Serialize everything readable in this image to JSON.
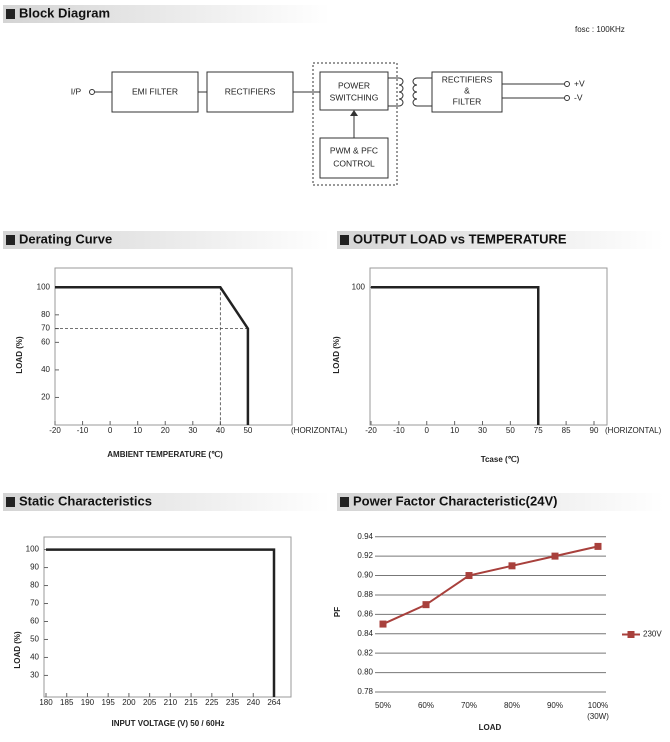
{
  "block_diagram": {
    "title": "Block Diagram",
    "note": "fosc : 100KHz",
    "input": "I/P",
    "nodes": [
      {
        "lines": [
          "EMI FILTER"
        ]
      },
      {
        "lines": [
          "RECTIFIERS"
        ]
      },
      {
        "lines": [
          "POWER",
          "SWITCHING"
        ]
      },
      {
        "lines": [
          "RECTIFIERS",
          "&",
          "FILTER"
        ]
      },
      {
        "lines": [
          "PWM & PFC",
          "CONTROL"
        ]
      }
    ],
    "outputs": [
      "+V",
      "-V"
    ]
  },
  "chart_data": [
    {
      "type": "line",
      "title": "Derating Curve",
      "x_label": "AMBIENT TEMPERATURE (℃)",
      "x_note": "(HORIZONTAL)",
      "y_label": "LOAD (%)",
      "xlim": [
        -20,
        66
      ],
      "xticks": [
        -20,
        -10,
        0,
        10,
        20,
        30,
        40,
        50
      ],
      "ylim": [
        0,
        114
      ],
      "yticks": [
        20,
        40,
        60,
        70,
        80,
        100
      ],
      "x": [
        -20,
        40,
        50,
        50
      ],
      "values": [
        100,
        100,
        70,
        0
      ],
      "color": "#222222",
      "guides": {
        "x": 40,
        "y": 70
      }
    },
    {
      "type": "line",
      "title": "OUTPUT LOAD vs TEMPERATURE",
      "x_label": "Tcase (℃)",
      "x_note": "(HORIZONTAL)",
      "y_label": "LOAD (%)",
      "categories": [
        "-20",
        "-10",
        "0",
        "10",
        "30",
        "50",
        "75",
        "85",
        "90"
      ],
      "ylim": [
        0,
        114
      ],
      "yticks": [
        100
      ],
      "x": [
        "-20",
        "75",
        "75"
      ],
      "values": [
        100,
        100,
        0
      ],
      "color": "#222222"
    },
    {
      "type": "line",
      "title": "Static Characteristics",
      "x_label": "INPUT VOLTAGE (V) 50 / 60Hz",
      "y_label": "LOAD (%)",
      "categories": [
        "180",
        "185",
        "190",
        "195",
        "200",
        "205",
        "210",
        "215",
        "225",
        "235",
        "240",
        "264"
      ],
      "ylim": [
        18,
        107
      ],
      "yticks": [
        30,
        40,
        50,
        60,
        70,
        80,
        90,
        100
      ],
      "x": [
        "180",
        "264",
        "264"
      ],
      "values": [
        100,
        100,
        18
      ],
      "color": "#222222"
    },
    {
      "type": "line",
      "title": "Power Factor Characteristic(24V)",
      "x_label": "LOAD",
      "x_note": "(30W)",
      "y_label": "PF",
      "categories": [
        "50%",
        "60%",
        "70%",
        "80%",
        "90%",
        "100%"
      ],
      "ylim": [
        0.78,
        0.95
      ],
      "yticks": [
        0.78,
        {
          "value": 0.8,
          "label": "0.80"
        },
        0.82,
        0.84,
        0.86,
        0.88,
        {
          "value": 0.9,
          "label": "0.90"
        },
        0.92,
        0.94
      ],
      "grid": true,
      "legend": "right",
      "series": [
        {
          "name": "230V",
          "color": "#a8403c",
          "values": [
            0.85,
            0.87,
            0.9,
            0.91,
            0.92,
            0.93
          ]
        }
      ]
    }
  ]
}
